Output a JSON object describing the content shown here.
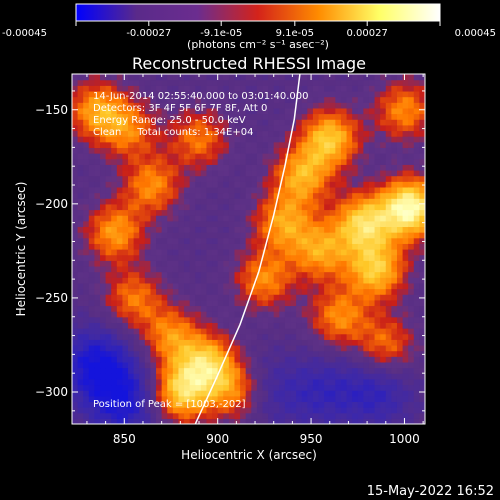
{
  "colorbar": {
    "ticks": [
      {
        "value": -0.00045,
        "label": "-0.00045"
      },
      {
        "value": -0.00027,
        "label": "-0.00027"
      },
      {
        "value": -9.1e-05,
        "label": "-9.1e-05"
      },
      {
        "value": 9.1e-05,
        "label": "9.1e-05"
      },
      {
        "value": 0.00027,
        "label": "0.00027"
      },
      {
        "value": 0.00045,
        "label": "0.00045"
      }
    ],
    "range": [
      -0.00045,
      0.00045
    ],
    "units_label": "(photons cm⁻² s⁻¹ asec⁻²)",
    "colors": [
      "#0000ff",
      "#5a2a8a",
      "#6b2d8f",
      "#d4231a",
      "#ff8c00",
      "#ffff66",
      "#ffffff"
    ]
  },
  "chart_data": {
    "type": "heatmap",
    "title": "Reconstructed RHESSI Image",
    "xlabel": "Heliocentric X (arcsec)",
    "ylabel": "Heliocentric Y (arcsec)",
    "xlim": [
      822,
      1011
    ],
    "ylim": [
      -317,
      -131
    ],
    "xticks": [
      850,
      900,
      950,
      1000
    ],
    "yticks": [
      -150,
      -200,
      -250,
      -300
    ],
    "xtick_labels": [
      "850",
      "900",
      "950",
      "1000"
    ],
    "ytick_labels": [
      "−150",
      "−200",
      "−250",
      "−300"
    ],
    "limb_curve": [
      [
        888,
        -317
      ],
      [
        900,
        -291
      ],
      [
        912,
        -264
      ],
      [
        922,
        -236
      ],
      [
        930,
        -206
      ],
      [
        936,
        -180
      ],
      [
        941,
        -155
      ],
      [
        944,
        -131
      ]
    ],
    "hot_spots": [
      {
        "x": 1003,
        "y": -202,
        "peak": 1.0
      },
      {
        "x": 978,
        "y": -210,
        "peak": 0.75
      },
      {
        "x": 985,
        "y": -235,
        "peak": 0.7
      },
      {
        "x": 960,
        "y": -165,
        "peak": 0.7
      },
      {
        "x": 945,
        "y": -185,
        "peak": 0.6
      },
      {
        "x": 935,
        "y": -210,
        "peak": 0.55
      },
      {
        "x": 955,
        "y": -225,
        "peak": 0.55
      },
      {
        "x": 925,
        "y": -240,
        "peak": 0.5
      },
      {
        "x": 880,
        "y": -300,
        "peak": 0.75
      },
      {
        "x": 895,
        "y": -285,
        "peak": 0.7
      },
      {
        "x": 875,
        "y": -270,
        "peak": 0.5
      },
      {
        "x": 910,
        "y": -300,
        "peak": 0.5
      },
      {
        "x": 835,
        "y": -150,
        "peak": 0.55
      },
      {
        "x": 852,
        "y": -160,
        "peak": 0.45
      },
      {
        "x": 865,
        "y": -190,
        "peak": 0.5
      },
      {
        "x": 845,
        "y": -215,
        "peak": 0.55
      },
      {
        "x": 855,
        "y": -250,
        "peak": 0.45
      },
      {
        "x": 890,
        "y": -165,
        "peak": 0.45
      },
      {
        "x": 1000,
        "y": -150,
        "peak": 0.5
      },
      {
        "x": 990,
        "y": -275,
        "peak": 0.45
      },
      {
        "x": 965,
        "y": -260,
        "peak": 0.5
      }
    ],
    "cold_spots": [
      {
        "x": 835,
        "y": -285,
        "depth": 0.9
      },
      {
        "x": 850,
        "y": -305,
        "depth": 0.8
      },
      {
        "x": 925,
        "y": -300,
        "depth": 0.4
      },
      {
        "x": 985,
        "y": -300,
        "depth": 0.6
      },
      {
        "x": 955,
        "y": -300,
        "depth": 0.5
      }
    ]
  },
  "annotations": {
    "time_range": "14-Jun-2014 02:55:40.000 to 03:01:40.000",
    "detectors": "Detectors: 3F 4F 5F 6F 7F 8F, Att 0",
    "energy_range": "Energy Range: 25.0 - 50.0 keV",
    "clean_counts": "Clean     Total counts: 1.34E+04",
    "peak_position": "Position of Peak = [1003,-202]"
  },
  "footer": {
    "date": "15-May-2022 16:52"
  }
}
